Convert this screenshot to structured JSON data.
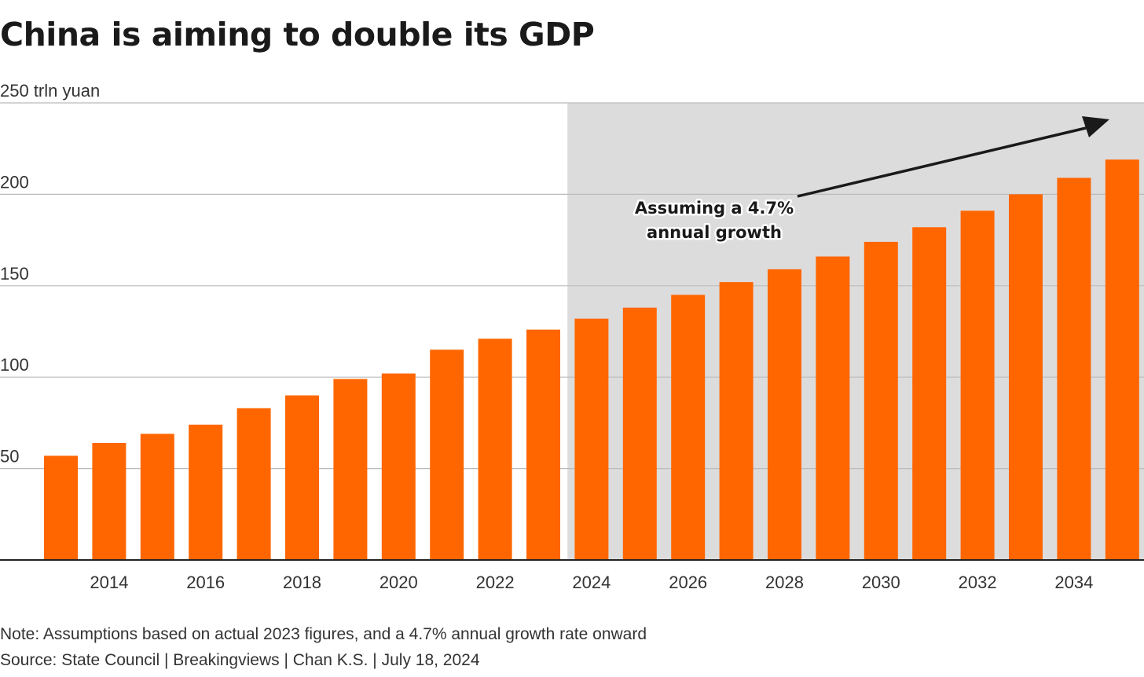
{
  "title": "China is aiming to double its GDP",
  "note": "Note: Assumptions based on actual 2023 figures, and a 4.7% annual growth rate onward",
  "source": "Source: State Council | Breakingviews | Chan K.S. | July 18, 2024",
  "colors": {
    "bar": "#ff6600",
    "projection_shade": "#dcdcdc",
    "gridline": "#bbbbbb",
    "axis": "#222222",
    "arrow": "#1a1a1a"
  },
  "chart_data": {
    "type": "bar",
    "x": [
      2013,
      2014,
      2015,
      2016,
      2017,
      2018,
      2019,
      2020,
      2021,
      2022,
      2023,
      2024,
      2025,
      2026,
      2027,
      2028,
      2029,
      2030,
      2031,
      2032,
      2033,
      2034,
      2035
    ],
    "values": [
      57,
      64,
      69,
      74,
      83,
      90,
      99,
      102,
      115,
      121,
      126,
      132,
      138,
      145,
      152,
      159,
      166,
      174,
      182,
      191,
      200,
      209,
      219
    ],
    "x_tick_labels": [
      "2014",
      "2016",
      "2018",
      "2020",
      "2022",
      "2024",
      "2026",
      "2028",
      "2030",
      "2032",
      "2034"
    ],
    "y_tick_labels": [
      "250 trln yuan",
      "200",
      "150",
      "100",
      "50"
    ],
    "y_ticks": [
      250,
      200,
      150,
      100,
      50
    ],
    "ylim": [
      0,
      250
    ],
    "grid": true,
    "projection_shaded_from": 2024,
    "annotation": {
      "line1": "Assuming a 4.7%",
      "line2": "annual growth"
    }
  }
}
